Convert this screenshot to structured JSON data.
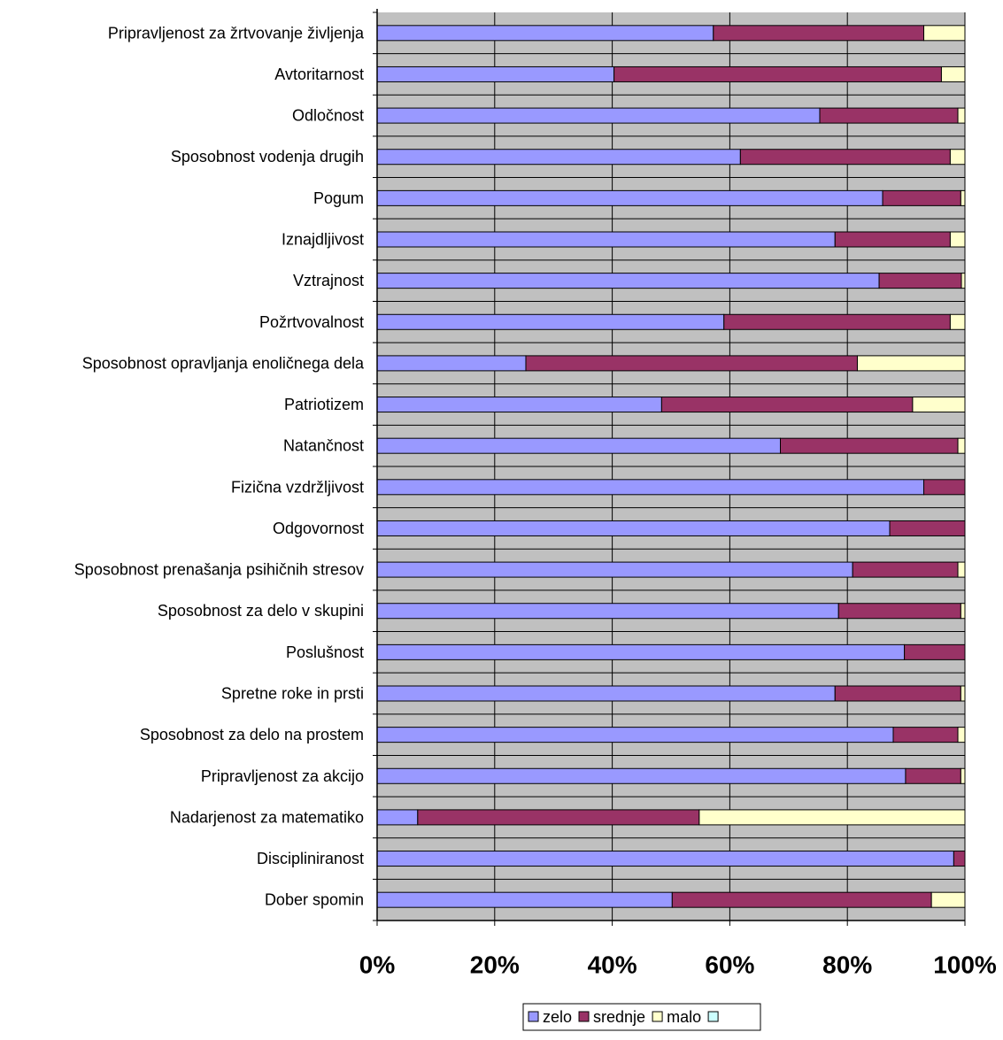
{
  "chart_data": {
    "type": "bar",
    "orientation": "horizontal",
    "stacked": "percent",
    "title": "",
    "xlabel": "",
    "ylabel": "",
    "xlim": [
      0,
      100
    ],
    "x_ticks": [
      "0%",
      "20%",
      "40%",
      "60%",
      "80%",
      "100%"
    ],
    "grid": true,
    "legend_position": "bottom",
    "categories": [
      "Pripravljenost za žrtvovanje življenja",
      "Avtoritarnost",
      "Odločnost",
      "Sposobnost vodenja drugih",
      "Pogum",
      "Iznajdljivost",
      "Vztrajnost",
      "Požrtvovalnost",
      "Sposobnost opravljanja enoličnega dela",
      "Patriotizem",
      "Natančnost",
      "Fizična vzdržljivost",
      "Odgovornost",
      "Sposobnost prenašanja psihičnih stresov",
      "Sposobnost za delo v skupini",
      "Poslušnost",
      "Spretne roke in prsti",
      "Sposobnost za delo na prostem",
      "Pripravljenost za akcijo",
      "Nadarjenost za matematiko",
      "Discipliniranost",
      "Dober spomin"
    ],
    "series": [
      {
        "name": "zelo",
        "color": "#9999ff",
        "values": [
          57.2,
          40.3,
          75.3,
          61.8,
          86.0,
          77.9,
          85.4,
          59.0,
          25.3,
          48.4,
          68.6,
          93.0,
          87.2,
          80.9,
          78.5,
          89.7,
          77.9,
          87.8,
          89.9,
          6.9,
          98.1,
          50.2
        ]
      },
      {
        "name": "srednje",
        "color": "#993366",
        "values": [
          35.8,
          55.7,
          23.5,
          35.7,
          13.3,
          19.6,
          14.0,
          38.5,
          56.4,
          42.7,
          30.2,
          7.0,
          12.8,
          17.9,
          20.8,
          10.3,
          21.4,
          11.0,
          9.4,
          47.9,
          1.9,
          44.1
        ]
      },
      {
        "name": "malo",
        "color": "#ffffcc",
        "values": [
          7.0,
          4.0,
          1.2,
          2.5,
          0.7,
          2.5,
          0.6,
          2.5,
          18.3,
          8.9,
          1.2,
          0.0,
          0.0,
          1.2,
          0.7,
          0.0,
          0.7,
          1.2,
          0.7,
          45.2,
          0.0,
          5.7
        ]
      },
      {
        "name": "",
        "color": "#ccffff",
        "values": [
          0,
          0,
          0,
          0,
          0,
          0,
          0,
          0,
          0,
          0,
          0,
          0,
          0,
          0,
          0,
          0,
          0,
          0,
          0,
          0,
          0,
          0
        ]
      }
    ]
  }
}
